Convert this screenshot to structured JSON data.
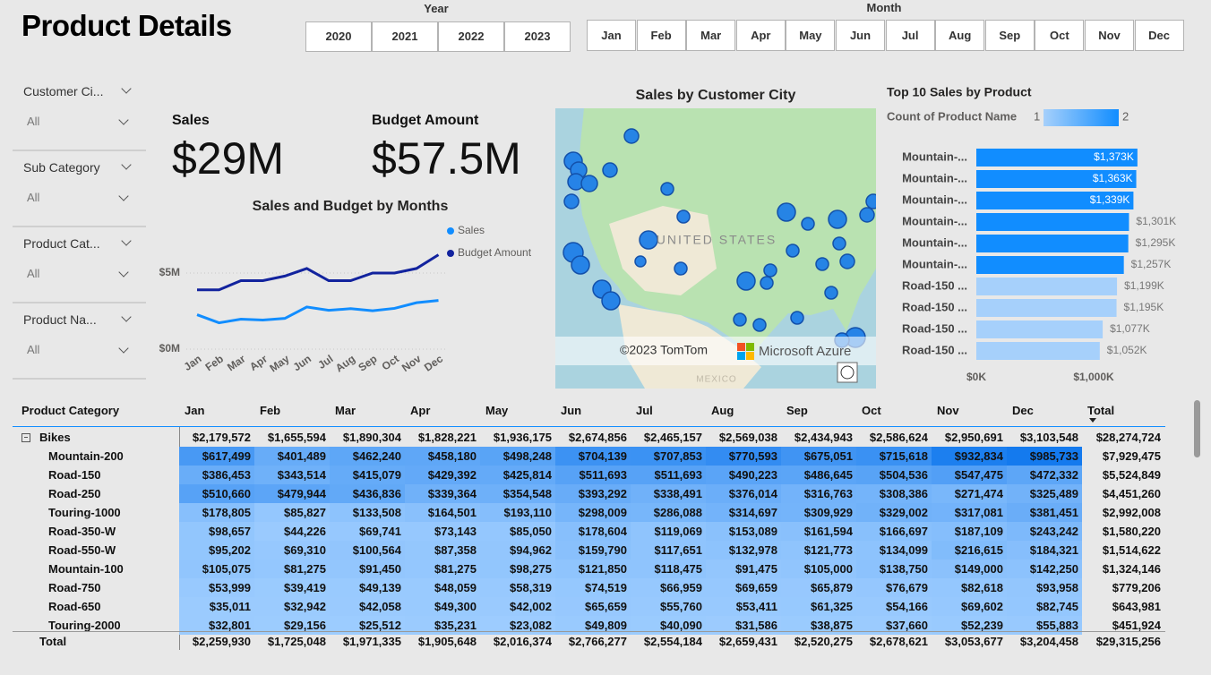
{
  "header": {
    "title": "Product Details"
  },
  "year_slicer": {
    "label": "Year",
    "options": [
      "2020",
      "2021",
      "2022",
      "2023"
    ]
  },
  "month_slicer": {
    "label": "Month",
    "options": [
      "Jan",
      "Feb",
      "Mar",
      "Apr",
      "May",
      "Jun",
      "Jul",
      "Aug",
      "Sep",
      "Oct",
      "Nov",
      "Dec"
    ]
  },
  "filters": [
    {
      "label": "Customer Ci...",
      "value": "All"
    },
    {
      "label": "Sub Category",
      "value": "All"
    },
    {
      "label": "Product Cat...",
      "value": "All"
    },
    {
      "label": "Product Na...",
      "value": "All"
    }
  ],
  "cards": [
    {
      "label": "Sales",
      "value": "$29M"
    },
    {
      "label": "Budget Amount",
      "value": "$57.5M"
    }
  ],
  "map": {
    "title": "Sales by Customer City",
    "country": "UNITED STATES",
    "neighbor": "MEXICO",
    "attribution": "©2023 TomTom",
    "brand": "Microsoft Azure"
  },
  "chart_data": [
    {
      "type": "line",
      "title": "Sales and Budget by Months",
      "categories": [
        "Jan",
        "Feb",
        "Mar",
        "Apr",
        "May",
        "Jun",
        "Jul",
        "Aug",
        "Sep",
        "Oct",
        "Nov",
        "Dec"
      ],
      "series": [
        {
          "name": "Sales",
          "color": "#118dff",
          "values": [
            2.26,
            1.73,
            1.97,
            1.91,
            2.02,
            2.77,
            2.55,
            2.66,
            2.52,
            2.68,
            3.05,
            3.2
          ]
        },
        {
          "name": "Budget Amount",
          "color": "#12239e",
          "values": [
            3.9,
            3.9,
            4.5,
            4.5,
            4.8,
            5.3,
            4.5,
            4.5,
            5.0,
            5.0,
            5.3,
            6.2
          ]
        }
      ],
      "ylim": [
        0,
        8
      ],
      "yticks": [
        {
          "value": 0,
          "label": "$0M"
        },
        {
          "value": 5,
          "label": "$5M"
        }
      ],
      "grid": true,
      "legend": "top-right"
    },
    {
      "type": "bar",
      "orientation": "horizontal",
      "title": "Top 10 Sales by Product",
      "legend": {
        "title": "Count of Product Name",
        "min": 1,
        "max": 2
      },
      "categories": [
        "Mountain-...",
        "Mountain-...",
        "Mountain-...",
        "Mountain-...",
        "Mountain-...",
        "Mountain-...",
        "Road-150 ...",
        "Road-150 ...",
        "Road-150 ...",
        "Road-150 ..."
      ],
      "values": [
        1373,
        1363,
        1339,
        1301,
        1295,
        1257,
        1199,
        1195,
        1077,
        1052
      ],
      "value_labels": [
        "$1,373K",
        "$1,363K",
        "$1,339K",
        "$1,301K",
        "$1,295K",
        "$1,257K",
        "$1,199K",
        "$1,195K",
        "$1,077K",
        "$1,052K"
      ],
      "value_label_positions": [
        "inside",
        "inside",
        "inside",
        "outside",
        "outside",
        "outside",
        "outside",
        "outside",
        "outside",
        "outside"
      ],
      "colors": [
        "#118dff",
        "#118dff",
        "#118dff",
        "#118dff",
        "#118dff",
        "#118dff",
        "#a6d0fb",
        "#a6d0fb",
        "#a6d0fb",
        "#a6d0fb"
      ],
      "xlim": [
        0,
        1400
      ],
      "xticks": [
        {
          "value": 0,
          "label": "$0K"
        },
        {
          "value": 1000,
          "label": "$1,000K"
        }
      ]
    }
  ],
  "table": {
    "columns": [
      "Product Category",
      "Jan",
      "Feb",
      "Mar",
      "Apr",
      "May",
      "Jun",
      "Jul",
      "Aug",
      "Sep",
      "Oct",
      "Nov",
      "Dec",
      "Total"
    ],
    "rows": [
      [
        "Bikes",
        "$2,179,572",
        "$1,655,594",
        "$1,890,304",
        "$1,828,221",
        "$1,936,175",
        "$2,674,856",
        "$2,465,157",
        "$2,569,038",
        "$2,434,943",
        "$2,586,624",
        "$2,950,691",
        "$3,103,548",
        "$28,274,724"
      ],
      [
        "Mountain-200",
        "$617,499",
        "$401,489",
        "$462,240",
        "$458,180",
        "$498,248",
        "$704,139",
        "$707,853",
        "$770,593",
        "$675,051",
        "$715,618",
        "$932,834",
        "$985,733",
        "$7,929,475"
      ],
      [
        "Road-150",
        "$386,453",
        "$343,514",
        "$415,079",
        "$429,392",
        "$425,814",
        "$511,693",
        "$511,693",
        "$490,223",
        "$486,645",
        "$504,536",
        "$547,475",
        "$472,332",
        "$5,524,849"
      ],
      [
        "Road-250",
        "$510,660",
        "$479,944",
        "$436,836",
        "$339,364",
        "$354,548",
        "$393,292",
        "$338,491",
        "$376,014",
        "$316,763",
        "$308,386",
        "$271,474",
        "$325,489",
        "$4,451,260"
      ],
      [
        "Touring-1000",
        "$178,805",
        "$85,827",
        "$133,508",
        "$164,501",
        "$193,110",
        "$298,009",
        "$286,088",
        "$314,697",
        "$309,929",
        "$329,002",
        "$317,081",
        "$381,451",
        "$2,992,008"
      ],
      [
        "Road-350-W",
        "$98,657",
        "$44,226",
        "$69,741",
        "$73,143",
        "$85,050",
        "$178,604",
        "$119,069",
        "$153,089",
        "$161,594",
        "$166,697",
        "$187,109",
        "$243,242",
        "$1,580,220"
      ],
      [
        "Road-550-W",
        "$95,202",
        "$69,310",
        "$100,564",
        "$87,358",
        "$94,962",
        "$159,790",
        "$117,651",
        "$132,978",
        "$121,773",
        "$134,099",
        "$216,615",
        "$184,321",
        "$1,514,622"
      ],
      [
        "Mountain-100",
        "$105,075",
        "$81,275",
        "$91,450",
        "$81,275",
        "$98,275",
        "$121,850",
        "$118,475",
        "$91,475",
        "$105,000",
        "$138,750",
        "$149,000",
        "$142,250",
        "$1,324,146"
      ],
      [
        "Road-750",
        "$53,999",
        "$39,419",
        "$49,139",
        "$48,059",
        "$58,319",
        "$74,519",
        "$66,959",
        "$69,659",
        "$65,879",
        "$76,679",
        "$82,618",
        "$93,958",
        "$779,206"
      ],
      [
        "Road-650",
        "$35,011",
        "$32,942",
        "$42,058",
        "$49,300",
        "$42,002",
        "$65,659",
        "$55,760",
        "$53,411",
        "$61,325",
        "$54,166",
        "$69,602",
        "$82,745",
        "$643,981"
      ],
      [
        "Touring-2000",
        "$32,801",
        "$29,156",
        "$25,512",
        "$35,231",
        "$23,082",
        "$49,809",
        "$40,090",
        "$31,586",
        "$38,875",
        "$37,660",
        "$52,239",
        "$55,883",
        "$451,924"
      ],
      [
        "Total",
        "$2,259,930",
        "$1,725,048",
        "$1,971,335",
        "$1,905,648",
        "$2,016,374",
        "$2,766,277",
        "$2,554,184",
        "$2,659,431",
        "$2,520,275",
        "$2,678,621",
        "$3,053,677",
        "$3,204,458",
        "$29,315,256"
      ]
    ]
  }
}
